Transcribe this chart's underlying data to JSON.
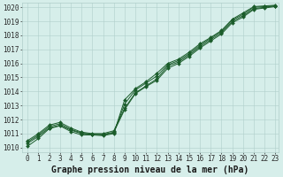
{
  "xlabel": "Graphe pression niveau de la mer (hPa)",
  "xlim_min": -0.5,
  "xlim_max": 23.3,
  "ylim_min": 1009.7,
  "ylim_max": 1020.3,
  "yticks": [
    1010,
    1011,
    1012,
    1013,
    1014,
    1015,
    1016,
    1017,
    1018,
    1019,
    1020
  ],
  "xticks": [
    0,
    1,
    2,
    3,
    4,
    5,
    6,
    7,
    8,
    9,
    10,
    11,
    12,
    13,
    14,
    15,
    16,
    17,
    18,
    19,
    20,
    21,
    22,
    23
  ],
  "background_color": "#d6eeea",
  "grid_color": "#b0ceca",
  "line_color": "#1a5c2a",
  "line1": [
    1010.5,
    1011.0,
    1011.6,
    1011.8,
    1011.4,
    1011.1,
    1011.0,
    1011.0,
    1011.2,
    1012.8,
    1013.9,
    1014.4,
    1014.9,
    1015.8,
    1016.1,
    1016.6,
    1017.2,
    1017.7,
    1018.2,
    1019.0,
    1019.4,
    1019.9,
    1020.0,
    1020.1
  ],
  "line2": [
    1010.4,
    1010.9,
    1011.5,
    1011.7,
    1011.3,
    1011.05,
    1010.95,
    1010.95,
    1011.1,
    1012.7,
    1013.85,
    1014.35,
    1014.8,
    1015.65,
    1016.0,
    1016.5,
    1017.1,
    1017.6,
    1018.1,
    1018.9,
    1019.3,
    1019.85,
    1019.95,
    1020.05
  ],
  "line3": [
    1010.3,
    1010.8,
    1011.4,
    1011.6,
    1011.25,
    1011.0,
    1010.95,
    1010.9,
    1011.05,
    1013.1,
    1014.1,
    1014.6,
    1015.1,
    1015.9,
    1016.2,
    1016.7,
    1017.3,
    1017.8,
    1018.3,
    1019.1,
    1019.5,
    1020.0,
    1020.05,
    1020.1
  ],
  "line4": [
    1010.1,
    1010.65,
    1011.35,
    1011.55,
    1011.15,
    1010.9,
    1010.9,
    1010.85,
    1011.0,
    1013.4,
    1014.2,
    1014.7,
    1015.3,
    1016.0,
    1016.3,
    1016.8,
    1017.4,
    1017.85,
    1018.35,
    1019.15,
    1019.6,
    1020.05,
    1020.1,
    1020.15
  ],
  "title_fontsize": 7,
  "tick_fontsize": 5.5,
  "lw": 0.7,
  "marker_size": 2.0,
  "figsize": [
    3.2,
    2.0
  ],
  "dpi": 100
}
